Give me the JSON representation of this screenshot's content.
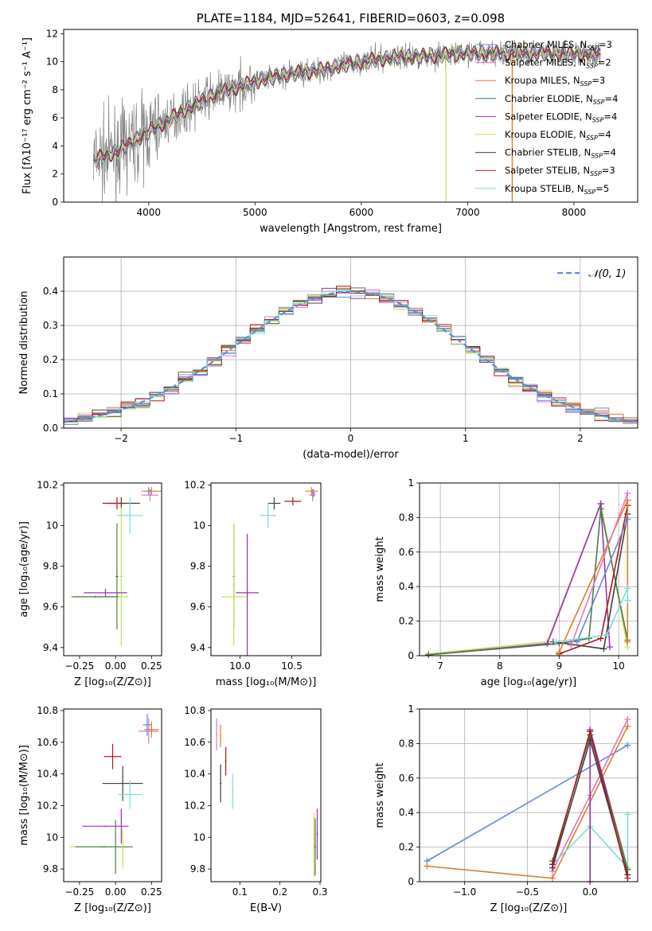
{
  "chart_data": [
    {
      "id": "spectrum",
      "type": "line",
      "title": "PLATE=1184, MJD=52641, FIBERID=0603, z=0.098",
      "xlabel": "wavelength [Angstrom, rest frame]",
      "ylabel": "Flux [fλ10⁻¹⁷ erg cm⁻² s⁻¹ A⁻¹]",
      "xlim": [
        3200,
        8600
      ],
      "ylim": [
        0,
        12.3
      ],
      "xticks": [
        4000,
        5000,
        6000,
        7000,
        8000
      ],
      "yticks": [
        0,
        2,
        4,
        6,
        8,
        10,
        12
      ],
      "grid": false,
      "legend_position": "top-right",
      "legend": [
        {
          "label": "Chabrier MILES, N_SSP=3",
          "color": "#6689d6"
        },
        {
          "label": "Salpeter MILES, N_SSP=2",
          "color": "#e377c2"
        },
        {
          "label": "Kroupa MILES, N_SSP=3",
          "color": "#e07c27"
        },
        {
          "label": "Chabrier ELODIE, N_SSP=4",
          "color": "#4e7a4e"
        },
        {
          "label": "Salpeter ELODIE, N_SSP=4",
          "color": "#9b32b5"
        },
        {
          "label": "Kroupa ELODIE, N_SSP=4",
          "color": "#c8df52"
        },
        {
          "label": "Chabrier STELIB, N_SSP=4",
          "color": "#404040"
        },
        {
          "label": "Salpeter STELIB, N_SSP=3",
          "color": "#b0171f"
        },
        {
          "label": "Kroupa STELIB, N_SSP=5",
          "color": "#7fdbdb"
        }
      ],
      "continuum": {
        "x": [
          3480,
          3700,
          4000,
          4300,
          4600,
          5000,
          5300,
          5600,
          6000,
          6300,
          6600,
          7000,
          7400,
          7800,
          8250
        ],
        "y": [
          3.0,
          3.6,
          5.0,
          6.4,
          7.6,
          8.6,
          9.1,
          9.4,
          10.0,
          10.3,
          10.4,
          10.6,
          10.6,
          10.6,
          10.5
        ]
      }
    },
    {
      "id": "residuals",
      "type": "area",
      "xlabel": "(data-model)/error",
      "ylabel": "Normed distribution",
      "xlim": [
        -2.5,
        2.5
      ],
      "ylim": [
        0,
        0.5
      ],
      "xticks": [
        -2,
        -1,
        0,
        1,
        2
      ],
      "yticks": [
        0.0,
        0.1,
        0.2,
        0.3,
        0.4
      ],
      "grid": true,
      "legend_position": "top-right",
      "legend": [
        {
          "label": "𝒩(0, 1)",
          "color": "#5b8fd6"
        }
      ]
    },
    {
      "id": "age_vs_Z",
      "type": "scatter",
      "xlabel": "Z [log₁₀(Z/Z⊙)]",
      "ylabel": "age  [log₁₀(age/yr)]",
      "xlim": [
        -0.36,
        0.32
      ],
      "ylim": [
        9.36,
        10.21
      ],
      "xticks": [
        -0.25,
        0.0,
        0.25
      ],
      "xticklabels": [
        "−0.25",
        "0.00",
        "0.25"
      ],
      "yticks": [
        9.4,
        9.6,
        9.8,
        10.0,
        10.2
      ],
      "grid": false,
      "points": [
        {
          "c": "#e377c2",
          "x": 0.24,
          "xerr": 0.06,
          "y": 10.15,
          "yerr": 0.03
        },
        {
          "c": "#e07c27",
          "x": 0.25,
          "xerr": 0.07,
          "y": 10.17,
          "yerr": 0.02
        },
        {
          "c": "#6689d6",
          "x": 0.23,
          "xerr": 0.02,
          "y": 10.17,
          "yerr": 0.02
        },
        {
          "c": "#404040",
          "x": 0.04,
          "xerr": 0.13,
          "y": 10.11,
          "yerr": 0.03
        },
        {
          "c": "#b0171f",
          "x": 0.01,
          "xerr": 0.06,
          "y": 10.11,
          "yerr": 0.03
        },
        {
          "c": "#7fdbdb",
          "x": 0.1,
          "xerr": 0.09,
          "y": 10.05,
          "yerr": 0.09
        },
        {
          "c": "#4e7a4e",
          "x": 0.01,
          "xerr": 0.01,
          "y": 9.75,
          "yerr": 0.26
        },
        {
          "c": "#c8df52",
          "x": 0.04,
          "xerr": 0.01,
          "y": 9.75,
          "yerr": 0.34
        },
        {
          "c": "#9b32b5",
          "x": -0.07,
          "xerr": 0.15,
          "y": 9.67,
          "yerr": 0.02
        },
        {
          "c": "#c8df52",
          "x": -0.11,
          "xerr": 0.2,
          "y": 9.65,
          "yerr": 0.005
        },
        {
          "c": "#4e7a4e",
          "x": -0.14,
          "xerr": 0.16,
          "y": 9.65,
          "yerr": 0.005
        }
      ]
    },
    {
      "id": "age_vs_mass",
      "type": "scatter",
      "xlabel": "mass [log₁₀(M/M⊙)]",
      "xlim": [
        9.72,
        10.78
      ],
      "ylim": [
        9.36,
        10.21
      ],
      "xticks": [
        10.0,
        10.5
      ],
      "xticklabels": [
        "10.0",
        "10.5"
      ],
      "yticks": [
        9.4,
        9.6,
        9.8,
        10.0,
        10.2
      ],
      "grid": false,
      "points": [
        {
          "c": "#e377c2",
          "x": 10.7,
          "xerr": 0.03,
          "y": 10.15,
          "yerr": 0.03
        },
        {
          "c": "#e07c27",
          "x": 10.69,
          "xerr": 0.06,
          "y": 10.17,
          "yerr": 0.02
        },
        {
          "c": "#6689d6",
          "x": 10.71,
          "xerr": 0.02,
          "y": 10.16,
          "yerr": 0.02
        },
        {
          "c": "#404040",
          "x": 10.33,
          "xerr": 0.06,
          "y": 10.11,
          "yerr": 0.03
        },
        {
          "c": "#b0171f",
          "x": 10.51,
          "xerr": 0.08,
          "y": 10.12,
          "yerr": 0.02
        },
        {
          "c": "#7fdbdb",
          "x": 10.27,
          "xerr": 0.08,
          "y": 10.05,
          "yerr": 0.06
        },
        {
          "c": "#4e7a4e",
          "x": 9.94,
          "xerr": 0.01,
          "y": 9.75,
          "yerr": 0.26
        },
        {
          "c": "#c8df52",
          "x": 9.94,
          "xerr": 0.01,
          "y": 9.71,
          "yerr": 0.3
        },
        {
          "c": "#9b32b5",
          "x": 10.07,
          "xerr": 0.11,
          "y": 9.67,
          "yerr": 0.02
        },
        {
          "c": "#9b32b5",
          "x": 10.07,
          "xerr": 0.005,
          "y": 9.52,
          "yerr": 0.44
        },
        {
          "c": "#c8df52",
          "x": 9.94,
          "xerr": 0.12,
          "y": 9.65,
          "yerr": 0.005
        }
      ]
    },
    {
      "id": "weight_vs_age",
      "type": "line",
      "xlabel": "age  [log₁₀(age/yr)]",
      "ylabel": "mass weight",
      "xlim": [
        6.65,
        10.32
      ],
      "ylim": [
        0,
        1.0
      ],
      "xticks": [
        7,
        8,
        9,
        10
      ],
      "yticks": [
        0.0,
        0.2,
        0.4,
        0.6,
        0.8,
        1.0
      ],
      "grid": true,
      "series": [
        {
          "c": "#c8df52",
          "x": [
            6.8,
            8.8,
            9.7,
            10.15
          ],
          "y": [
            0.01,
            0.08,
            0.88,
            0.05
          ]
        },
        {
          "c": "#9b32b5",
          "x": [
            6.8,
            8.8,
            9.7,
            9.85
          ],
          "y": [
            0.005,
            0.07,
            0.88,
            0.05
          ]
        },
        {
          "c": "#4e7a4e",
          "x": [
            6.8,
            9.0,
            9.5,
            9.7,
            10.15
          ],
          "y": [
            0.005,
            0.07,
            0.1,
            0.85,
            0.09
          ]
        },
        {
          "c": "#404040",
          "x": [
            8.9,
            9.75,
            10.15
          ],
          "y": [
            0.08,
            0.04,
            0.82
          ]
        },
        {
          "c": "#b0171f",
          "x": [
            9.0,
            9.7,
            10.15
          ],
          "y": [
            0.01,
            0.1,
            0.87
          ]
        },
        {
          "c": "#e07c27",
          "x": [
            9.0,
            10.15,
            10.15
          ],
          "y": [
            0.02,
            0.9,
            0.08
          ]
        },
        {
          "c": "#e377c2",
          "x": [
            9.2,
            10.15
          ],
          "y": [
            0.06,
            0.94
          ]
        },
        {
          "c": "#6689d6",
          "x": [
            9.3,
            10.15
          ],
          "y": [
            0.08,
            0.79
          ]
        },
        {
          "c": "#7fdbdb",
          "x": [
            8.95,
            9.8,
            10.15,
            10.15
          ],
          "y": [
            0.08,
            0.12,
            0.39,
            0.32
          ]
        }
      ]
    },
    {
      "id": "mass_vs_Z",
      "type": "scatter",
      "xlabel": "Z [log₁₀(Z/Z⊙)]",
      "ylabel": "mass [log₁₀(M/M⊙)]",
      "xlim": [
        -0.36,
        0.32
      ],
      "ylim": [
        9.72,
        10.81
      ],
      "xticks": [
        -0.25,
        0.0,
        0.25
      ],
      "xticklabels": [
        "−0.25",
        "0.00",
        "0.25"
      ],
      "yticks": [
        9.8,
        10.0,
        10.2,
        10.4,
        10.6,
        10.8
      ],
      "grid": false,
      "points": [
        {
          "c": "#e377c2",
          "x": 0.23,
          "xerr": 0.07,
          "y": 10.67,
          "yerr": 0.08
        },
        {
          "c": "#e07c27",
          "x": 0.25,
          "xerr": 0.05,
          "y": 10.68,
          "yerr": 0.05
        },
        {
          "c": "#6689d6",
          "x": 0.22,
          "xerr": 0.03,
          "y": 10.71,
          "yerr": 0.07
        },
        {
          "c": "#b0171f",
          "x": -0.02,
          "xerr": 0.06,
          "y": 10.51,
          "yerr": 0.08
        },
        {
          "c": "#404040",
          "x": 0.05,
          "xerr": 0.14,
          "y": 10.34,
          "yerr": 0.11
        },
        {
          "c": "#7fdbdb",
          "x": 0.1,
          "xerr": 0.08,
          "y": 10.27,
          "yerr": 0.09
        },
        {
          "c": "#9b32b5",
          "x": -0.07,
          "xerr": 0.16,
          "y": 10.07,
          "yerr": 0.005
        },
        {
          "c": "#9b32b5",
          "x": 0.04,
          "xerr": 0.005,
          "y": 10.07,
          "yerr": 0.11
        },
        {
          "c": "#4e7a4e",
          "x": 0.0,
          "xerr": 0.005,
          "y": 9.94,
          "yerr": 0.17
        },
        {
          "c": "#c8df52",
          "x": -0.1,
          "xerr": 0.22,
          "y": 9.94,
          "yerr": 0.005
        },
        {
          "c": "#4e7a4e",
          "x": -0.08,
          "xerr": 0.2,
          "y": 9.94,
          "yerr": 0.005
        },
        {
          "c": "#c8df52",
          "x": 0.05,
          "xerr": 0.005,
          "y": 9.93,
          "yerr": 0.12
        }
      ]
    },
    {
      "id": "mass_vs_ebv",
      "type": "scatter",
      "xlabel": "E(B-V)",
      "xlim": [
        0.028,
        0.302
      ],
      "ylim": [
        9.72,
        10.81
      ],
      "xticks": [
        0.1,
        0.2,
        0.3
      ],
      "xticklabels": [
        "0.1",
        "0.2",
        "0.3"
      ],
      "yticks": [
        9.8,
        10.0,
        10.2,
        10.4,
        10.6,
        10.8
      ],
      "grid": false,
      "points": [
        {
          "c": "#e377c2",
          "x": 0.042,
          "xerr": 0.002,
          "y": 10.65,
          "yerr": 0.1
        },
        {
          "c": "#e07c27",
          "x": 0.052,
          "xerr": 0.002,
          "y": 10.64,
          "yerr": 0.07
        },
        {
          "c": "#b0171f",
          "x": 0.065,
          "xerr": 0.002,
          "y": 10.48,
          "yerr": 0.09
        },
        {
          "c": "#404040",
          "x": 0.052,
          "xerr": 0.002,
          "y": 10.34,
          "yerr": 0.12
        },
        {
          "c": "#7fdbdb",
          "x": 0.082,
          "xerr": 0.002,
          "y": 10.29,
          "yerr": 0.11
        },
        {
          "c": "#9b32b5",
          "x": 0.293,
          "xerr": 0.002,
          "y": 10.02,
          "yerr": 0.16
        },
        {
          "c": "#c8df52",
          "x": 0.285,
          "xerr": 0.002,
          "y": 9.95,
          "yerr": 0.2
        },
        {
          "c": "#4e7a4e",
          "x": 0.288,
          "xerr": 0.002,
          "y": 9.94,
          "yerr": 0.18
        }
      ]
    },
    {
      "id": "weight_vs_Z",
      "type": "line",
      "xlabel": "Z [log₁₀(Z/Z⊙)]",
      "ylabel": "mass weight",
      "xlim": [
        -1.36,
        0.38
      ],
      "ylim": [
        0,
        1.0
      ],
      "xticks": [
        -1.0,
        -0.5,
        0.0
      ],
      "xticklabels": [
        "−1.0",
        "−0.5",
        "0.0"
      ],
      "yticks": [
        0.0,
        0.2,
        0.4,
        0.6,
        0.8,
        1.0
      ],
      "grid": true,
      "series": [
        {
          "c": "#6689d6",
          "x": [
            -1.3,
            0.3
          ],
          "y": [
            0.12,
            0.79
          ]
        },
        {
          "c": "#e07c27",
          "x": [
            -1.3,
            -0.3,
            0.3
          ],
          "y": [
            0.09,
            0.02,
            0.9
          ]
        },
        {
          "c": "#e377c2",
          "x": [
            -0.3,
            0.0,
            0.3
          ],
          "y": [
            0.06,
            0.5,
            0.94
          ]
        },
        {
          "c": "#7fdbdb",
          "x": [
            -0.3,
            0.0,
            0.3,
            0.3
          ],
          "y": [
            0.1,
            0.32,
            0.08,
            0.39
          ]
        },
        {
          "c": "#c8df52",
          "x": [
            0.0,
            0.0,
            0.3
          ],
          "y": [
            0.0,
            0.88,
            0.08
          ]
        },
        {
          "c": "#9b32b5",
          "x": [
            0.0,
            0.0,
            0.3
          ],
          "y": [
            0.0,
            0.88,
            0.07
          ]
        },
        {
          "c": "#4e7a4e",
          "x": [
            -0.3,
            0.0,
            0.3
          ],
          "y": [
            0.12,
            0.85,
            0.07
          ]
        },
        {
          "c": "#404040",
          "x": [
            -0.3,
            0.0,
            0.3
          ],
          "y": [
            0.08,
            0.82,
            0.04
          ]
        },
        {
          "c": "#b0171f",
          "x": [
            -0.3,
            0.0,
            0.3
          ],
          "y": [
            0.1,
            0.87,
            0.02
          ]
        }
      ]
    }
  ]
}
